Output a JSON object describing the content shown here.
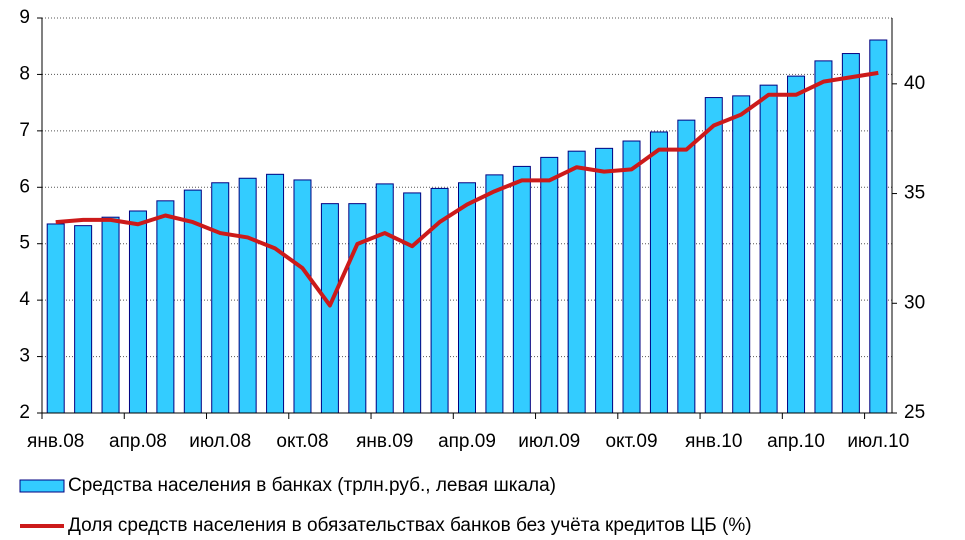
{
  "chart_data": {
    "type": "bar_line",
    "categories": [
      "янв.08",
      null,
      null,
      "апр.08",
      null,
      null,
      "июл.08",
      null,
      null,
      "окт.08",
      null,
      null,
      "янв.09",
      null,
      null,
      "апр.09",
      null,
      null,
      "июл.09",
      null,
      null,
      "окт.09",
      null,
      null,
      "янв.10",
      null,
      null,
      "апр.10",
      null,
      null,
      "июл.10"
    ],
    "series": [
      {
        "name": "Средства населения в банках (трлн.руб., левая шкала)",
        "color": "#33ccff",
        "type": "bar",
        "axis": "y",
        "values": [
          5.35,
          5.32,
          5.47,
          5.58,
          5.76,
          5.95,
          6.08,
          6.16,
          6.23,
          6.13,
          5.71,
          5.71,
          6.06,
          5.9,
          5.98,
          6.08,
          6.22,
          6.37,
          6.53,
          6.64,
          6.69,
          6.82,
          6.98,
          7.19,
          7.59,
          7.62,
          7.81,
          7.97,
          8.24,
          8.37,
          8.61
        ]
      },
      {
        "name": "Доля средств населения в обязательствах банков без учёта кредитов ЦБ (%)",
        "color": "#cc1a1a",
        "type": "line",
        "axis": "y2",
        "values": [
          33.7,
          33.8,
          33.8,
          33.6,
          34.0,
          33.7,
          33.2,
          33.0,
          32.5,
          31.6,
          29.9,
          32.7,
          33.2,
          32.6,
          33.7,
          34.5,
          35.1,
          35.6,
          35.6,
          36.2,
          36.0,
          36.1,
          37.0,
          37.0,
          38.1,
          38.6,
          39.5,
          39.5,
          40.1,
          40.3,
          40.5
        ]
      }
    ],
    "ylim": [
      2,
      9
    ],
    "yticks": [
      2,
      3,
      4,
      5,
      6,
      7,
      8,
      9
    ],
    "y2lim": [
      25,
      43
    ],
    "y2ticks": [
      25,
      30,
      35,
      40
    ],
    "grid": true
  }
}
